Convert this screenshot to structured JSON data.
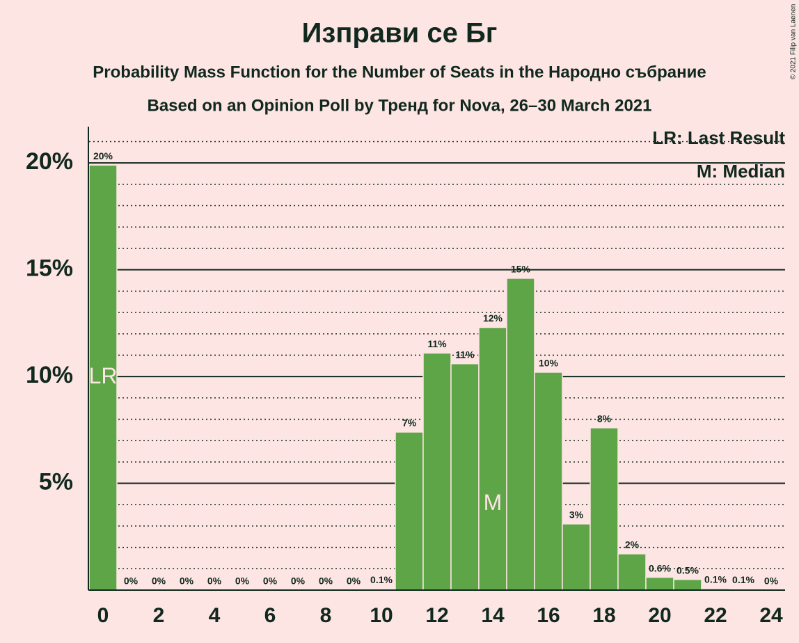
{
  "chart_data": {
    "type": "bar",
    "title": "Изправи се Бг",
    "subtitle": "Probability Mass Function for the Number of Seats in the Народно събрание",
    "subtitle2": "Based on an Opinion Poll by Тренд for Nova, 26–30 March 2021",
    "copyright": "© 2021 Filip van Laenen",
    "legend": [
      "LR: Last Result",
      "M: Median"
    ],
    "legend_position": "top-right",
    "x": [
      0,
      1,
      2,
      3,
      4,
      5,
      6,
      7,
      8,
      9,
      10,
      11,
      12,
      13,
      14,
      15,
      16,
      17,
      18,
      19,
      20,
      21,
      22,
      23,
      24
    ],
    "values": [
      19.9,
      0,
      0,
      0,
      0,
      0,
      0,
      0,
      0,
      0,
      0.05,
      7.4,
      11.1,
      10.6,
      12.3,
      14.6,
      10.2,
      3.1,
      7.6,
      1.7,
      0.6,
      0.5,
      0.07,
      0.05,
      0
    ],
    "value_labels": [
      "20%",
      "0%",
      "0%",
      "0%",
      "0%",
      "0%",
      "0%",
      "0%",
      "0%",
      "0%",
      "0.1%",
      "7%",
      "11%",
      "11%",
      "12%",
      "15%",
      "10%",
      "3%",
      "8%",
      "2%",
      "0.6%",
      "0.5%",
      "0.1%",
      "0.1%",
      "0%"
    ],
    "color": "#5da547",
    "annotations": [
      {
        "x": 0,
        "text": "LR"
      },
      {
        "x": 14,
        "text": "M"
      }
    ],
    "xlim": [
      -0.5,
      24.5
    ],
    "xticks": [
      0,
      2,
      4,
      6,
      8,
      10,
      12,
      14,
      16,
      18,
      20,
      22,
      24
    ],
    "ylim": [
      0,
      21.7
    ],
    "yticks": [
      {
        "value": 5,
        "label": "5%"
      },
      {
        "value": 10,
        "label": "10%"
      },
      {
        "value": 15,
        "label": "15%"
      },
      {
        "value": 20,
        "label": "20%"
      }
    ],
    "grid": true
  }
}
